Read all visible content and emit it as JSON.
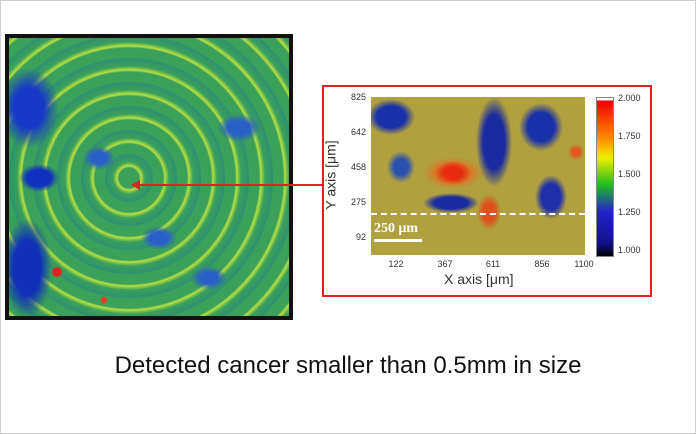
{
  "heatmap": {
    "y_ticks": [
      "825",
      "642",
      "458",
      "275",
      "92"
    ],
    "x_ticks": [
      "122",
      "367",
      "611",
      "856",
      "1100"
    ],
    "x_label": "X axis [μm]",
    "y_label": "Y axis [μm]",
    "scale_bar": "250 μm",
    "colorbar_ticks": [
      "2.000",
      "1.750",
      "1.500",
      "1.250",
      "1.000"
    ]
  },
  "caption": "Detected cancer smaller than 0.5mm in size",
  "colors": {
    "arrow": "#dd2222",
    "frame": "#dd2222"
  }
}
